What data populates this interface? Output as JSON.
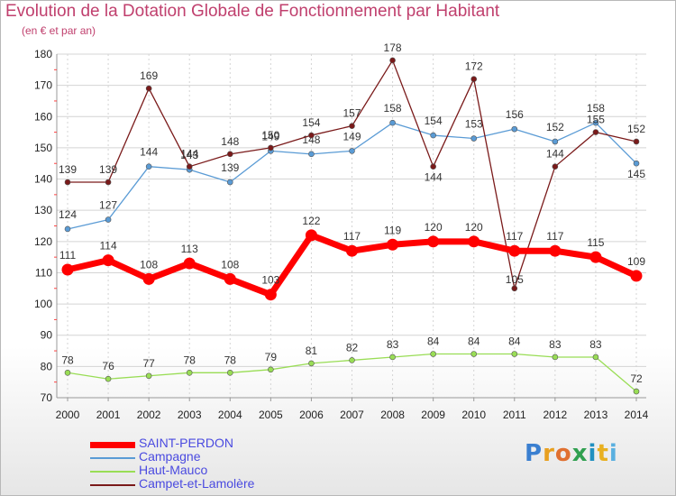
{
  "chart_data": {
    "type": "line",
    "title": "Evolution de la Dotation Globale de Fonctionnement par Habitant",
    "subtitle": "(en € et par an)",
    "x": [
      "2000",
      "2001",
      "2002",
      "2003",
      "2004",
      "2005",
      "2006",
      "2007",
      "2008",
      "2009",
      "2010",
      "2011",
      "2012",
      "2013",
      "2014"
    ],
    "yticks": [
      70,
      80,
      90,
      100,
      110,
      120,
      130,
      140,
      150,
      160,
      170,
      180
    ],
    "ylim": [
      70,
      180
    ],
    "grid": true,
    "legend_position": "bottom-left",
    "series": [
      {
        "name": "SAINT-PERDON",
        "color": "#ff0000",
        "values": [
          111,
          114,
          108,
          113,
          108,
          103,
          122,
          117,
          119,
          120,
          120,
          117,
          117,
          115,
          109
        ]
      },
      {
        "name": "Campagne",
        "color": "#5a9bd5",
        "values": [
          124,
          127,
          144,
          143,
          139,
          149,
          148,
          149,
          158,
          154,
          153,
          156,
          152,
          158,
          145
        ]
      },
      {
        "name": "Haut-Mauco",
        "color": "#99dd55",
        "values": [
          78,
          76,
          77,
          78,
          78,
          79,
          81,
          82,
          83,
          84,
          84,
          84,
          83,
          83,
          72
        ]
      },
      {
        "name": "Campet-et-Lamolère",
        "color": "#7a1a1a",
        "values": [
          139,
          139,
          169,
          144,
          148,
          150,
          154,
          157,
          178,
          144,
          172,
          105,
          144,
          155,
          152
        ]
      }
    ]
  },
  "logo": {
    "letters": [
      "P",
      "r",
      "o",
      "x",
      "i",
      "t",
      "i"
    ]
  }
}
